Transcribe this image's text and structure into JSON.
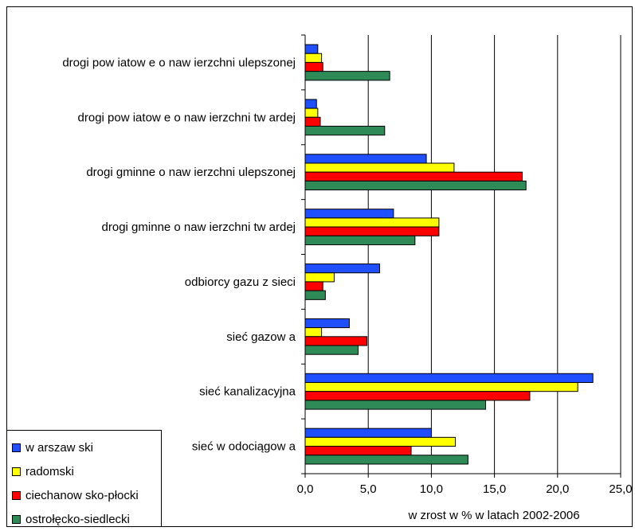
{
  "chart_data": {
    "type": "bar",
    "orientation": "horizontal",
    "categories": [
      "drogi pow iatow e o naw ierzchni ulepszonej",
      "drogi pow iatow e o naw ierzchni tw ardej",
      "drogi gminne o naw ierzchni ulepszonej",
      "drogi gminne o naw ierzchni tw ardej",
      "odbiorcy gazu z sieci",
      "sieć gazow a",
      "sieć kanalizacyjna",
      "sieć w odociągow a"
    ],
    "series": [
      {
        "name": "w arszaw ski",
        "color": "#1f4fff",
        "values": [
          1.0,
          0.9,
          9.6,
          7.0,
          5.9,
          3.5,
          22.8,
          10.0
        ]
      },
      {
        "name": "radomski",
        "color": "#ffff00",
        "values": [
          1.3,
          1.0,
          11.8,
          10.6,
          2.3,
          1.3,
          21.6,
          11.9
        ]
      },
      {
        "name": "ciechanow sko-płocki",
        "color": "#ff0000",
        "values": [
          1.4,
          1.2,
          17.2,
          10.6,
          1.4,
          4.9,
          17.8,
          8.4
        ]
      },
      {
        "name": "ostrołęcko-siedlecki",
        "color": "#2e8b57",
        "values": [
          6.7,
          6.3,
          17.5,
          8.7,
          1.6,
          4.2,
          14.3,
          12.9
        ]
      }
    ],
    "xlim": [
      0,
      25
    ],
    "xticks": [
      "0,0",
      "5,0",
      "10,0",
      "15,0",
      "20,0",
      "25,0"
    ],
    "xlabel": "w zrost w % w latach 2002-2006",
    "grid": "vertical",
    "legend_position": "bottom-left"
  }
}
